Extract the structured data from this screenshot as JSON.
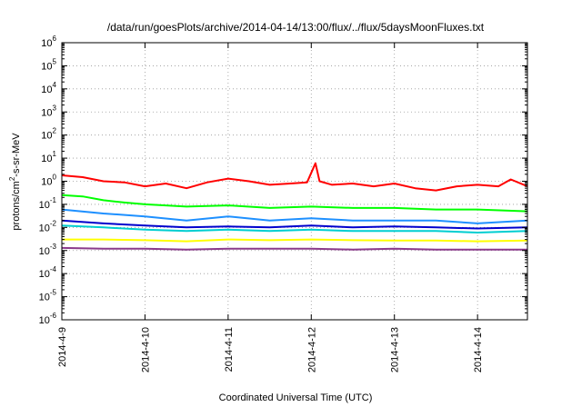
{
  "chart_data": {
    "type": "line",
    "title": "/data/run/goesPlots/archive/2014-04-14/13:00/flux/../flux/5daysMoonFluxes.txt",
    "xlabel": "Coordinated Universal Time (UTC)",
    "ylabel": {
      "pre": "protons/cm",
      "sup": "2",
      "post": "-s-sr-MeV"
    },
    "yscale": "log",
    "ylim": [
      -6,
      6
    ],
    "yticks": [
      {
        "base": "10",
        "exp": "-6",
        "value": -6
      },
      {
        "base": "10",
        "exp": "-5",
        "value": -5
      },
      {
        "base": "10",
        "exp": "-4",
        "value": -4
      },
      {
        "base": "10",
        "exp": "-3",
        "value": -3
      },
      {
        "base": "10",
        "exp": "-2",
        "value": -2
      },
      {
        "base": "10",
        "exp": "-1",
        "value": -1
      },
      {
        "base": "10",
        "exp": "0",
        "value": 0
      },
      {
        "base": "10",
        "exp": "1",
        "value": 1
      },
      {
        "base": "10",
        "exp": "2",
        "value": 2
      },
      {
        "base": "10",
        "exp": "3",
        "value": 3
      },
      {
        "base": "10",
        "exp": "4",
        "value": 4
      },
      {
        "base": "10",
        "exp": "5",
        "value": 5
      },
      {
        "base": "10",
        "exp": "6",
        "value": 6
      }
    ],
    "xlim": [
      0,
      5.6
    ],
    "xticks": [
      {
        "label": "2014-4-9",
        "value": 0
      },
      {
        "label": "2014-4-10",
        "value": 1
      },
      {
        "label": "2014-4-11",
        "value": 2
      },
      {
        "label": "2014-4-12",
        "value": 3
      },
      {
        "label": "2014-4-13",
        "value": 4
      },
      {
        "label": "2014-4-14",
        "value": 5
      }
    ],
    "grid": true,
    "series": [
      {
        "color": "#ff0000",
        "x": [
          0,
          0.25,
          0.5,
          0.75,
          1.0,
          1.25,
          1.5,
          1.75,
          2.0,
          2.25,
          2.5,
          2.75,
          2.95,
          3.05,
          3.1,
          3.25,
          3.5,
          3.75,
          4.0,
          4.25,
          4.5,
          4.75,
          5.0,
          5.25,
          5.4,
          5.6
        ],
        "values": [
          1.8,
          1.5,
          1.0,
          0.9,
          0.6,
          0.8,
          0.5,
          0.9,
          1.3,
          1.0,
          0.7,
          0.8,
          0.9,
          6.0,
          1.0,
          0.7,
          0.8,
          0.6,
          0.8,
          0.5,
          0.4,
          0.6,
          0.7,
          0.6,
          1.2,
          0.6
        ]
      },
      {
        "color": "#00ff00",
        "x": [
          0,
          0.25,
          0.5,
          0.75,
          1.0,
          1.5,
          2.0,
          2.5,
          3.0,
          3.5,
          4.0,
          4.5,
          5.0,
          5.6
        ],
        "values": [
          0.25,
          0.22,
          0.15,
          0.12,
          0.1,
          0.08,
          0.09,
          0.07,
          0.08,
          0.07,
          0.07,
          0.06,
          0.06,
          0.05
        ]
      },
      {
        "color": "#1e90ff",
        "x": [
          0,
          0.5,
          1.0,
          1.5,
          2.0,
          2.5,
          3.0,
          3.5,
          4.0,
          4.5,
          5.0,
          5.6
        ],
        "values": [
          0.06,
          0.04,
          0.03,
          0.02,
          0.03,
          0.02,
          0.025,
          0.02,
          0.02,
          0.02,
          0.015,
          0.02
        ]
      },
      {
        "color": "#00ced1",
        "x": [
          0,
          0.5,
          1.0,
          1.5,
          2.0,
          2.5,
          3.0,
          3.5,
          4.0,
          4.5,
          5.0,
          5.6
        ],
        "values": [
          0.012,
          0.01,
          0.008,
          0.007,
          0.008,
          0.007,
          0.008,
          0.007,
          0.007,
          0.007,
          0.006,
          0.007
        ]
      },
      {
        "color": "#0000cd",
        "x": [
          0,
          0.5,
          1.0,
          1.5,
          2.0,
          2.5,
          3.0,
          3.5,
          4.0,
          4.5,
          5.0,
          5.6
        ],
        "values": [
          0.02,
          0.015,
          0.012,
          0.01,
          0.011,
          0.01,
          0.012,
          0.01,
          0.011,
          0.01,
          0.009,
          0.01
        ]
      },
      {
        "color": "#ffff00",
        "x": [
          0,
          0.5,
          1.0,
          1.5,
          2.0,
          2.5,
          3.0,
          3.5,
          4.0,
          4.5,
          5.0,
          5.6
        ],
        "values": [
          0.003,
          0.003,
          0.0028,
          0.0025,
          0.003,
          0.0028,
          0.003,
          0.0028,
          0.0027,
          0.0027,
          0.0025,
          0.0027
        ]
      },
      {
        "color": "#8b3a8b",
        "x": [
          0,
          0.5,
          1.0,
          1.5,
          2.0,
          2.5,
          3.0,
          3.5,
          4.0,
          4.5,
          5.0,
          5.6
        ],
        "values": [
          0.0013,
          0.0012,
          0.0012,
          0.0011,
          0.0012,
          0.0012,
          0.0012,
          0.0011,
          0.0012,
          0.0011,
          0.0011,
          0.0011
        ]
      }
    ]
  }
}
